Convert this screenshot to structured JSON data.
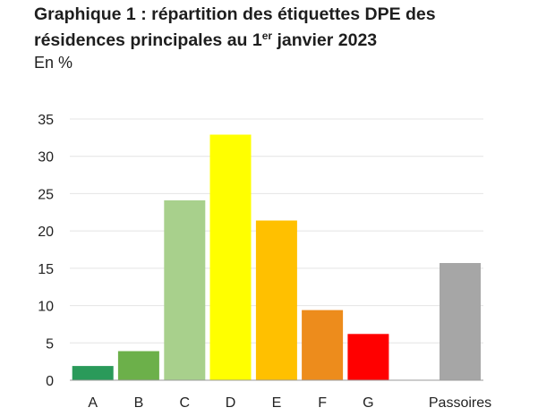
{
  "title": {
    "line1": "Graphique 1 : répartition des étiquettes DPE des",
    "line2_before": "résidences principales au 1",
    "line2_sup": "er",
    "line2_after": " janvier 2023"
  },
  "unit_label": "En %",
  "colors": {
    "grid": "#e4e4e4",
    "axis": "#9a9a9a"
  },
  "chart_data": {
    "type": "bar",
    "categories": [
      "A",
      "B",
      "C",
      "D",
      "E",
      "F",
      "G",
      "Passoires"
    ],
    "values": [
      1.9,
      3.9,
      24.1,
      32.9,
      21.4,
      9.4,
      6.2,
      15.7
    ],
    "colors": [
      "#2a9a5a",
      "#6cb04a",
      "#a8d08c",
      "#ffff00",
      "#ffc000",
      "#ed8c1c",
      "#ff0000",
      "#a6a6a6"
    ],
    "title": "Graphique 1 : répartition des étiquettes DPE des résidences principales au 1er janvier 2023",
    "ylabel": "En %",
    "ylim": [
      0,
      35
    ],
    "yticks": [
      0,
      5,
      10,
      15,
      20,
      25,
      30,
      35
    ],
    "grid": true,
    "legend": "none"
  }
}
